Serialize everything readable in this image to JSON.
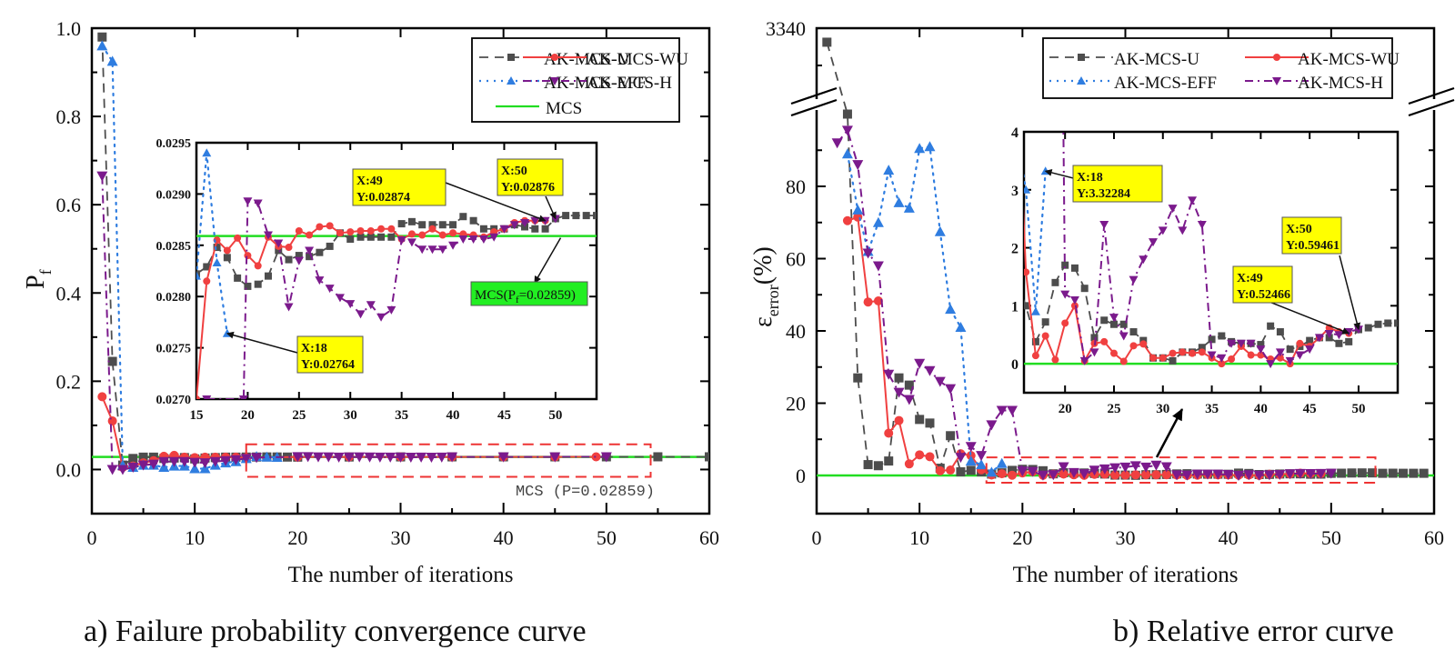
{
  "chart_data": [
    {
      "id": "a",
      "type": "line",
      "caption": "a) Failure probability convergence curve",
      "xlabel": "The number of iterations",
      "ylabel": "P",
      "ylabel_sub": "f",
      "xlim": [
        0,
        60
      ],
      "ylim": [
        -0.1,
        1.0
      ],
      "xticks": [
        "0",
        "10",
        "20",
        "30",
        "40",
        "50",
        "60"
      ],
      "yticks": [
        "0.0",
        "0.2",
        "0.4",
        "0.6",
        "0.8",
        "1.0"
      ],
      "legend": [
        "AK-MCS-U",
        "AK-MCS-WU",
        "AK-MCS-EFF",
        "AK-MCS-H",
        "MCS"
      ],
      "legend_position": "top-right",
      "reference_line": {
        "name": "MCS",
        "value": 0.02859
      },
      "reference_label": "MCS (P_f=0.02859)",
      "series": [
        {
          "name": "AK-MCS-U",
          "x": [
            1,
            2,
            3,
            4,
            5,
            6,
            7,
            8,
            9,
            10,
            11,
            12,
            13,
            14,
            15,
            16,
            17,
            18,
            19,
            20,
            25,
            30,
            35,
            40,
            45,
            50,
            55,
            60
          ],
          "values": [
            0.98,
            0.245,
            0.01,
            0.025,
            0.028,
            0.028,
            0.025,
            0.026,
            0.027,
            0.024,
            0.026,
            0.027,
            0.028,
            0.028,
            0.0282,
            0.0283,
            0.0285,
            0.0284,
            0.0282,
            0.0281,
            0.0284,
            0.0286,
            0.0287,
            0.0287,
            0.0287,
            0.02876,
            0.0288,
            0.0288
          ]
        },
        {
          "name": "AK-MCS-WU",
          "x": [
            1,
            2,
            3,
            4,
            5,
            6,
            7,
            8,
            9,
            10,
            11,
            12,
            13,
            14,
            15,
            20,
            25,
            30,
            35,
            40,
            45,
            49
          ],
          "values": [
            0.165,
            0.11,
            0.005,
            0.008,
            0.015,
            0.02,
            0.03,
            0.032,
            0.028,
            0.027,
            0.028,
            0.028,
            0.028,
            0.028,
            0.027,
            0.0284,
            0.0286,
            0.0286,
            0.0286,
            0.0286,
            0.0286,
            0.02874
          ]
        },
        {
          "name": "AK-MCS-EFF",
          "x": [
            1,
            2,
            3,
            4,
            5,
            6,
            7,
            8,
            9,
            10,
            11,
            12,
            13,
            14,
            15,
            16,
            17,
            18
          ],
          "values": [
            0.96,
            0.925,
            0.01,
            0.005,
            0.01,
            0.01,
            0.005,
            0.008,
            0.008,
            0.002,
            0.002,
            0.01,
            0.015,
            0.018,
            0.025,
            0.0294,
            0.0283,
            0.02764
          ]
        },
        {
          "name": "AK-MCS-H",
          "x": [
            1,
            2,
            3,
            4,
            5,
            6,
            7,
            8,
            9,
            10,
            11,
            12,
            13,
            14,
            15,
            16,
            20,
            21,
            22,
            23,
            24,
            25,
            26,
            27,
            28,
            29,
            30,
            31,
            32,
            33,
            34,
            35,
            40,
            45,
            50
          ],
          "values": [
            0.665,
            0.0,
            0.0,
            0.005,
            0.01,
            0.012,
            0.018,
            0.018,
            0.018,
            0.016,
            0.015,
            0.018,
            0.02,
            0.022,
            0.025,
            0.027,
            0.0289,
            0.0289,
            0.0286,
            0.0285,
            0.0279,
            0.0283,
            0.0284,
            0.0282,
            0.0281,
            0.028,
            0.0279,
            0.0278,
            0.0279,
            0.0278,
            0.0279,
            0.0286,
            0.0285,
            0.0286,
            0.02876
          ]
        }
      ],
      "inset": {
        "xlim": [
          15,
          54
        ],
        "ylim": [
          0.027,
          0.0295
        ],
        "xticks": [
          "15",
          "20",
          "25",
          "30",
          "35",
          "40",
          "45",
          "50"
        ],
        "yticks": [
          "0.0270",
          "0.0275",
          "0.0280",
          "0.0285",
          "0.0290",
          "0.0295"
        ],
        "series": [
          {
            "name": "AK-MCS-U",
            "x": [
              15,
              16,
              17,
              18,
              19,
              20,
              21,
              22,
              23,
              24,
              25,
              26,
              27,
              28,
              29,
              30,
              31,
              32,
              33,
              34,
              35,
              36,
              37,
              38,
              39,
              40,
              41,
              42,
              43,
              44,
              45,
              46,
              47,
              48,
              49,
              50,
              51,
              52,
              53,
              54
            ],
            "values": [
              0.02822,
              0.02829,
              0.02848,
              0.02838,
              0.02818,
              0.0281,
              0.02812,
              0.0282,
              0.02845,
              0.02836,
              0.0284,
              0.02839,
              0.02843,
              0.02849,
              0.02862,
              0.02856,
              0.02858,
              0.02858,
              0.02858,
              0.02858,
              0.02871,
              0.02873,
              0.0287,
              0.0287,
              0.0287,
              0.0287,
              0.02878,
              0.02874,
              0.02866,
              0.02866,
              0.02866,
              0.0287,
              0.02868,
              0.02866,
              0.02866,
              0.02876,
              0.02879,
              0.02879,
              0.02879,
              0.02879
            ]
          },
          {
            "name": "AK-MCS-WU",
            "x": [
              15,
              16,
              17,
              18,
              19,
              20,
              21,
              22,
              23,
              24,
              25,
              26,
              27,
              28,
              29,
              30,
              31,
              32,
              33,
              34,
              35,
              36,
              37,
              38,
              39,
              40,
              41,
              42,
              43,
              44,
              45,
              46,
              47,
              48,
              49
            ],
            "values": [
              0.027,
              0.02815,
              0.02855,
              0.02845,
              0.02857,
              0.0284,
              0.0283,
              0.02858,
              0.02849,
              0.02848,
              0.02864,
              0.0286,
              0.02868,
              0.02869,
              0.02862,
              0.02863,
              0.02864,
              0.02864,
              0.02866,
              0.02866,
              0.02856,
              0.02861,
              0.0286,
              0.02866,
              0.0286,
              0.02862,
              0.02861,
              0.0286,
              0.02858,
              0.02863,
              0.02866,
              0.02872,
              0.02874,
              0.02874,
              0.02874
            ]
          },
          {
            "name": "AK-MCS-EFF",
            "x": [
              15,
              16,
              17,
              18
            ],
            "values": [
              0.0282,
              0.0294,
              0.02833,
              0.02764
            ]
          },
          {
            "name": "AK-MCS-H",
            "x": [
              16,
              19.6,
              20,
              21,
              22,
              23,
              24,
              25,
              26,
              27,
              28,
              29,
              30,
              31,
              32,
              33,
              34,
              35,
              36,
              37,
              38,
              39,
              40,
              41,
              42,
              43,
              44,
              45,
              46,
              47,
              48,
              49,
              50
            ],
            "values": [
              0.027,
              0.027,
              0.02893,
              0.02891,
              0.0286,
              0.02852,
              0.0279,
              0.02835,
              0.02845,
              0.02816,
              0.02808,
              0.02799,
              0.02793,
              0.02783,
              0.02792,
              0.0278,
              0.02787,
              0.02855,
              0.02853,
              0.02846,
              0.02846,
              0.02846,
              0.0285,
              0.02856,
              0.02856,
              0.02856,
              0.02858,
              0.02866,
              0.0287,
              0.02872,
              0.02874,
              0.02874,
              0.02876
            ]
          }
        ],
        "annotations": [
          {
            "x": 18,
            "text_x": "X:18",
            "text_y": "Y:0.02764"
          },
          {
            "x": 49,
            "text_x": "X:49",
            "text_y": "Y:0.02874"
          },
          {
            "x": 50,
            "text_x": "X:50",
            "text_y": "Y:0.02876"
          }
        ],
        "reference_label": "MCS(P",
        "reference_label_sub": "f",
        "reference_label_tail": "=0.02859)"
      }
    },
    {
      "id": "b",
      "type": "line",
      "caption": "b) Relative error curve",
      "xlabel": "The number of iterations",
      "ylabel": "ε",
      "ylabel_sub": "error",
      "ylabel_tail": "(%)",
      "xlim": [
        0,
        60
      ],
      "ylim": [
        -10,
        100
      ],
      "axis_break": true,
      "ytop_label": "3340",
      "xticks": [
        "0",
        "10",
        "20",
        "30",
        "40",
        "50",
        "60"
      ],
      "yticks": [
        "0",
        "20",
        "40",
        "60",
        "80"
      ],
      "legend": [
        "AK-MCS-U",
        "AK-MCS-WU",
        "AK-MCS-EFF",
        "AK-MCS-H"
      ],
      "legend_position": "top-right",
      "reference_line": {
        "name": "MCS",
        "value": 0
      },
      "series": [
        {
          "name": "AK-MCS-U",
          "x": [
            1,
            3,
            4,
            5,
            6,
            7,
            8,
            9,
            10,
            11,
            12,
            13,
            14,
            15,
            16,
            17,
            18,
            19,
            20,
            21,
            22,
            23,
            24,
            25,
            26,
            27,
            28,
            29,
            30,
            31,
            32,
            33,
            34,
            35,
            36,
            37,
            38,
            39,
            40,
            41,
            42,
            43,
            44,
            45,
            46,
            47,
            48,
            49,
            50,
            51,
            52,
            53,
            54,
            55,
            56,
            57,
            58,
            59
          ],
          "values": [
            3300,
            100,
            27,
            3,
            2.7,
            4,
            27,
            25,
            15.5,
            14.5,
            2,
            11,
            1,
            1.4,
            1,
            0.38,
            0.72,
            1.4,
            1.7,
            1.65,
            1.3,
            0.45,
            0.75,
            0.68,
            0.68,
            0.55,
            0.4,
            0.1,
            0.1,
            0.05,
            0.2,
            0.2,
            0.28,
            0.42,
            0.48,
            0.38,
            0.35,
            0.35,
            0.33,
            0.65,
            0.55,
            0.25,
            0.3,
            0.4,
            0.45,
            0.45,
            0.35,
            0.38,
            0.59,
            0.62,
            0.68,
            0.7,
            0.7,
            0.6,
            0.62,
            0.6,
            0.6,
            0.6
          ]
        },
        {
          "name": "AK-MCS-WU",
          "x": [
            3,
            4,
            5,
            6,
            7,
            8,
            9,
            10,
            11,
            12,
            13,
            14,
            15,
            16,
            17,
            18,
            19,
            20,
            21,
            22,
            23,
            24,
            25,
            26,
            27,
            28,
            29,
            30,
            31,
            32,
            33,
            34,
            35,
            36,
            37,
            38,
            39,
            40,
            41,
            42,
            43,
            44,
            45,
            46,
            47,
            48,
            49
          ],
          "values": [
            70.5,
            71.5,
            48,
            48.3,
            11.7,
            15.2,
            3.2,
            5.7,
            5.2,
            1.3,
            1.5,
            6,
            5.5,
            1.58,
            0.14,
            0.48,
            0.07,
            0.7,
            1.0,
            0.05,
            0.35,
            0.38,
            0.18,
            0.04,
            0.31,
            0.34,
            0.1,
            0.1,
            0.18,
            0.2,
            0.18,
            0.2,
            0.1,
            0.0,
            0.08,
            0.3,
            0.15,
            0.15,
            0.08,
            0.1,
            0.0,
            0.35,
            0.3,
            0.45,
            0.62,
            0.55,
            0.52466
          ]
        },
        {
          "name": "AK-MCS-EFF",
          "x": [
            3,
            4,
            5,
            6,
            7,
            8,
            9,
            10,
            11,
            12,
            13,
            14,
            15,
            16,
            17,
            18
          ],
          "values": [
            89,
            73.5,
            62,
            70,
            84.5,
            75.5,
            74,
            90.5,
            91,
            67.5,
            46,
            41,
            4,
            3,
            0.9,
            3.32284
          ]
        },
        {
          "name": "AK-MCS-H",
          "x": [
            2,
            3,
            4,
            5,
            6,
            7,
            8,
            9,
            10,
            11,
            12,
            13,
            14,
            15,
            16,
            17,
            18,
            19,
            20,
            21,
            22,
            23,
            24,
            25,
            26,
            27,
            28,
            29,
            30,
            31,
            32,
            33,
            34,
            35,
            36,
            37,
            38,
            39,
            40,
            41,
            42,
            43,
            44,
            45,
            46,
            47,
            48,
            49,
            50
          ],
          "values": [
            92,
            95.5,
            86,
            61.5,
            58,
            28,
            23,
            21,
            31,
            29,
            26,
            24,
            5,
            8,
            5.5,
            14,
            18,
            18,
            1.2,
            1.1,
            0.05,
            0.2,
            2.4,
            0.8,
            0.48,
            1.45,
            1.8,
            2.1,
            2.3,
            2.68,
            2.3,
            2.82,
            2.4,
            0.15,
            0.1,
            0.35,
            0.35,
            0.35,
            0.25,
            0.0,
            0.2,
            0.05,
            0.15,
            0.25,
            0.45,
            0.52,
            0.5,
            0.55,
            0.59461
          ]
        }
      ],
      "inset": {
        "xlim": [
          15.8,
          54
        ],
        "ylim": [
          -0.5,
          4
        ],
        "xticks": [
          "20",
          "25",
          "30",
          "35",
          "40",
          "45",
          "50"
        ],
        "yticks": [
          "0",
          "1",
          "2",
          "3",
          "4"
        ],
        "annotations": [
          {
            "x": 18,
            "text_x": "X:18",
            "text_y": "Y:3.32284"
          },
          {
            "x": 49,
            "text_x": "X:49",
            "text_y": "Y:0.52466"
          },
          {
            "x": 50,
            "text_x": "X:50",
            "text_y": "Y:0.59461"
          }
        ]
      }
    }
  ],
  "colors": {
    "AK-MCS-U": "#4d4d4d",
    "AK-MCS-WU": "#f04040",
    "AK-MCS-EFF": "#2f7de0",
    "AK-MCS-H": "#7b1a8c",
    "MCS": "#22dd22",
    "annotation_bg": "#ffff00",
    "mcs_label_bg": "#22ee22",
    "zoom_box": "#ee3333"
  }
}
